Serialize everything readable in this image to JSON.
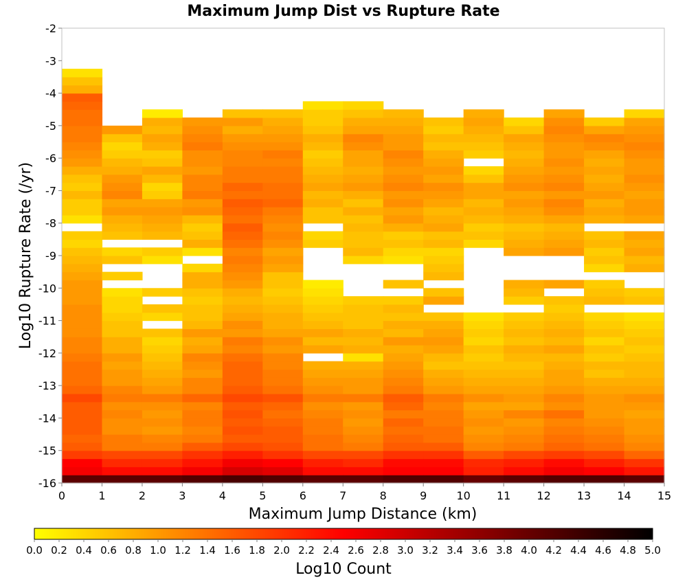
{
  "chart_data": {
    "type": "heatmap",
    "title": "Maximum Jump Dist vs Rupture Rate",
    "xlabel": "Maximum Jump Distance (km)",
    "ylabel": "Log10 Rupture Rate (/yr)",
    "xlim": [
      0,
      15
    ],
    "ylim": [
      -16,
      -2
    ],
    "x_ticks": [
      "0",
      "1",
      "2",
      "3",
      "4",
      "5",
      "6",
      "7",
      "8",
      "9",
      "10",
      "11",
      "12",
      "13",
      "14",
      "15"
    ],
    "y_ticks": [
      "-2",
      "-3",
      "-4",
      "-5",
      "-6",
      "-7",
      "-8",
      "-9",
      "-10",
      "-11",
      "-12",
      "-13",
      "-14",
      "-15",
      "-16"
    ],
    "x_bin_width": 1,
    "y_bin_height": 0.25,
    "y_bin_start": -16,
    "colorbar": {
      "label": "Log10 Count",
      "range": [
        0,
        5
      ],
      "ticks": [
        "0.0",
        "0.2",
        "0.4",
        "0.6",
        "0.8",
        "1.0",
        "1.2",
        "1.4",
        "1.6",
        "1.8",
        "2.0",
        "2.2",
        "2.4",
        "2.6",
        "2.8",
        "3.0",
        "3.2",
        "3.4",
        "3.6",
        "3.8",
        "4.0",
        "4.2",
        "4.4",
        "4.6",
        "4.8",
        "5.0"
      ],
      "colors": [
        "#ffff00",
        "#ff8000",
        "#ff0000",
        "#800000",
        "#000000"
      ]
    },
    "columns_note": "values[i] is column i (x from i to i+1); entry j is the bin starting at y = -16 + 0.25*j; null = empty",
    "values": [
      [
        4.1,
        2.6,
        2.5,
        1.9,
        1.6,
        1.5,
        1.6,
        1.6,
        1.6,
        1.6,
        1.8,
        1.5,
        1.4,
        1.4,
        1.4,
        1.3,
        1.2,
        1.2,
        1.1,
        1.1,
        1.1,
        1.1,
        1.0,
        1.0,
        1.0,
        0.9,
        0.8,
        0.7,
        0.6,
        0.4,
        0.5,
        null,
        0.3,
        0.5,
        0.5,
        0.7,
        0.5,
        0.6,
        0.8,
        1.0,
        1.1,
        1.2,
        1.3,
        1.3,
        1.4,
        1.4,
        1.5,
        1.6,
        0.8,
        0.6,
        0.3
      ],
      [
        4.1,
        2.4,
        2.1,
        1.8,
        1.3,
        1.3,
        1.1,
        1.1,
        1.2,
        1.1,
        1.3,
        1.2,
        1.0,
        1.0,
        0.9,
        1.0,
        0.8,
        0.8,
        0.6,
        0.6,
        0.5,
        0.4,
        0.4,
        0.3,
        null,
        0.5,
        null,
        0.6,
        0.4,
        null,
        0.6,
        0.7,
        0.8,
        1.0,
        0.9,
        1.2,
        1.1,
        1.0,
        0.8,
        0.7,
        0.5,
        0.4,
        0.6,
        1.0
      ],
      [
        4.1,
        2.4,
        2.1,
        1.8,
        1.3,
        1.2,
        1.0,
        1.1,
        1.0,
        1.1,
        1.3,
        1.0,
        0.9,
        0.8,
        0.7,
        0.6,
        0.5,
        0.4,
        0.6,
        null,
        0.4,
        0.6,
        null,
        0.5,
        null,
        null,
        null,
        0.3,
        0.5,
        null,
        0.7,
        0.8,
        0.9,
        1.0,
        0.9,
        0.5,
        0.4,
        0.7,
        0.9,
        0.6,
        0.5,
        0.8,
        0.9,
        0.7,
        0.8,
        0.2
      ],
      [
        4.2,
        2.6,
        2.3,
        2.0,
        1.6,
        1.3,
        1.2,
        1.3,
        1.3,
        1.2,
        1.5,
        1.2,
        1.2,
        1.0,
        1.1,
        1.2,
        0.9,
        0.8,
        1.0,
        0.7,
        0.6,
        0.6,
        0.5,
        0.6,
        0.8,
        0.8,
        0.4,
        null,
        0.3,
        0.8,
        0.6,
        0.5,
        0.7,
        1.1,
        1.0,
        1.3,
        1.2,
        1.2,
        1.0,
        1.1,
        1.1,
        1.3,
        1.2,
        1.1,
        1.0
      ],
      [
        4.3,
        2.9,
        2.6,
        2.2,
        1.8,
        1.6,
        1.7,
        1.6,
        1.7,
        1.6,
        1.8,
        1.6,
        1.5,
        1.5,
        1.5,
        1.4,
        1.2,
        1.3,
        1.0,
        1.1,
        0.9,
        0.8,
        0.7,
        0.8,
        1.0,
        1.1,
        1.2,
        1.3,
        1.2,
        1.4,
        1.5,
        1.6,
        1.4,
        1.5,
        1.6,
        1.4,
        1.5,
        1.3,
        1.3,
        1.2,
        1.2,
        1.1,
        1.0,
        0.8,
        1.0,
        0.6
      ],
      [
        4.2,
        2.8,
        2.5,
        2.0,
        1.7,
        1.6,
        1.6,
        1.5,
        1.4,
        1.5,
        1.7,
        1.4,
        1.3,
        1.3,
        1.2,
        1.2,
        1.0,
        1.1,
        0.9,
        0.8,
        0.8,
        0.7,
        0.6,
        0.5,
        0.6,
        0.6,
        0.9,
        1.0,
        0.9,
        1.1,
        1.2,
        1.1,
        1.2,
        1.3,
        1.5,
        1.4,
        1.4,
        1.3,
        1.3,
        1.2,
        1.3,
        1.1,
        1.0,
        0.9,
        0.8,
        0.6
      ],
      [
        4.1,
        2.4,
        2.2,
        1.8,
        1.4,
        1.4,
        1.3,
        1.3,
        1.2,
        1.1,
        1.3,
        1.1,
        1.0,
        0.9,
        0.8,
        null,
        0.9,
        0.7,
        0.9,
        0.7,
        0.6,
        0.5,
        0.4,
        0.3,
        0.2,
        null,
        null,
        null,
        null,
        0.5,
        0.4,
        null,
        0.6,
        0.6,
        0.8,
        0.7,
        0.9,
        0.8,
        0.7,
        0.6,
        0.5,
        0.7,
        0.8,
        0.6,
        0.5,
        0.5,
        0.3
      ],
      [
        4.1,
        2.4,
        2.1,
        1.8,
        1.3,
        1.2,
        1.1,
        1.0,
        1.1,
        1.0,
        1.3,
        1.0,
        1.0,
        0.9,
        0.8,
        0.3,
        0.8,
        0.7,
        0.8,
        0.6,
        0.6,
        0.6,
        0.5,
        null,
        null,
        null,
        null,
        0.4,
        0.7,
        0.6,
        0.6,
        0.7,
        0.6,
        0.8,
        0.6,
        0.8,
        1.0,
        0.9,
        0.8,
        0.9,
        0.9,
        1.1,
        1.2,
        0.9,
        0.8,
        0.6,
        0.4
      ],
      [
        4.2,
        2.5,
        2.4,
        2.0,
        1.6,
        1.5,
        1.4,
        1.5,
        1.3,
        1.5,
        1.6,
        1.3,
        1.2,
        1.1,
        1.0,
        0.9,
        0.8,
        1.0,
        0.7,
        0.8,
        0.6,
        0.7,
        0.5,
        null,
        0.6,
        null,
        null,
        0.3,
        0.4,
        0.6,
        0.5,
        0.8,
        1.0,
        0.9,
        1.1,
        1.0,
        1.2,
        1.1,
        1.0,
        1.1,
        1.2,
        1.0,
        1.0,
        0.9,
        0.8,
        0.7
      ],
      [
        4.2,
        2.5,
        2.4,
        2.0,
        1.6,
        1.4,
        1.4,
        1.3,
        1.3,
        1.2,
        1.3,
        1.0,
        0.9,
        0.8,
        0.6,
        0.7,
        0.9,
        1.0,
        0.9,
        0.8,
        0.6,
        null,
        0.9,
        0.6,
        null,
        0.7,
        0.6,
        0.5,
        0.4,
        0.7,
        0.6,
        0.9,
        0.8,
        0.7,
        0.9,
        1.0,
        1.1,
        0.9,
        1.0,
        0.9,
        0.8,
        0.6,
        0.7,
        0.5,
        0.6
      ],
      [
        4.0,
        2.2,
        2.1,
        1.6,
        1.2,
        1.1,
        1.0,
        1.1,
        1.0,
        0.9,
        1.1,
        0.9,
        0.8,
        0.7,
        0.6,
        0.5,
        0.6,
        0.4,
        0.5,
        0.4,
        0.3,
        null,
        null,
        null,
        null,
        null,
        null,
        null,
        null,
        0.4,
        0.6,
        0.5,
        0.7,
        0.8,
        0.7,
        0.9,
        0.9,
        0.6,
        0.4,
        null,
        0.5,
        0.6,
        0.7,
        0.8,
        0.9,
        0.8
      ],
      [
        4.1,
        2.4,
        2.2,
        1.8,
        1.3,
        1.2,
        1.1,
        1.0,
        1.2,
        0.9,
        1.0,
        0.9,
        0.8,
        0.7,
        0.6,
        0.7,
        0.8,
        0.6,
        0.7,
        0.6,
        0.5,
        null,
        0.5,
        0.7,
        0.8,
        null,
        null,
        null,
        0.9,
        0.8,
        0.7,
        0.6,
        0.8,
        0.9,
        1.0,
        0.9,
        1.1,
        1.0,
        0.9,
        0.8,
        0.7,
        0.8,
        0.9,
        0.6,
        0.4
      ],
      [
        4.2,
        2.6,
        2.4,
        1.9,
        1.5,
        1.4,
        1.3,
        1.2,
        1.4,
        1.1,
        1.2,
        1.0,
        0.9,
        0.9,
        0.8,
        0.7,
        0.9,
        0.7,
        0.8,
        0.7,
        0.6,
        0.5,
        0.6,
        null,
        0.9,
        null,
        null,
        null,
        1.0,
        0.9,
        0.8,
        0.7,
        0.9,
        1.1,
        1.2,
        1.0,
        1.2,
        1.1,
        1.0,
        1.1,
        1.0,
        1.0,
        1.1,
        1.2,
        1.1,
        0.9
      ],
      [
        4.2,
        2.5,
        2.2,
        1.8,
        1.4,
        1.3,
        1.2,
        1.1,
        1.0,
        1.0,
        1.0,
        0.9,
        0.8,
        0.6,
        0.7,
        0.5,
        0.6,
        0.4,
        0.6,
        0.5,
        0.4,
        null,
        0.7,
        0.6,
        0.5,
        null,
        0.4,
        0.6,
        0.5,
        0.7,
        0.6,
        null,
        0.8,
        0.9,
        0.8,
        1.0,
        0.9,
        0.8,
        0.9,
        0.8,
        0.9,
        1.1,
        1.2,
        0.9,
        0.5
      ],
      [
        4.1,
        2.3,
        2.0,
        1.5,
        1.2,
        1.1,
        1.0,
        1.0,
        0.9,
        1.0,
        1.1,
        0.9,
        0.8,
        0.7,
        0.7,
        0.6,
        0.5,
        0.6,
        0.5,
        0.4,
        0.3,
        null,
        0.6,
        0.5,
        null,
        null,
        0.8,
        0.7,
        0.9,
        0.8,
        0.9,
        null,
        0.9,
        1.0,
        1.0,
        0.9,
        1.0,
        1.1,
        1.0,
        1.0,
        1.1,
        1.2,
        1.1,
        1.0,
        0.9,
        0.4
      ]
    ]
  }
}
